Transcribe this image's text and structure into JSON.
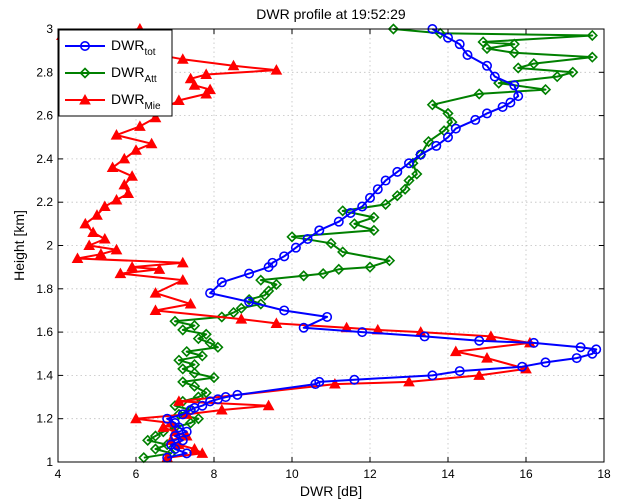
{
  "chart_data": {
    "type": "line",
    "title": "DWR profile at 19:52:29",
    "xlabel": "DWR [dB]",
    "ylabel": "Height [km]",
    "xlim": [
      4,
      18
    ],
    "ylim": [
      1,
      3
    ],
    "xticks": [
      4,
      6,
      8,
      10,
      12,
      14,
      16,
      18
    ],
    "yticks": [
      1,
      1.2,
      1.4,
      1.6,
      1.8,
      2,
      2.2,
      2.4,
      2.6,
      2.8,
      3
    ],
    "grid": true,
    "legend_position": "top-left",
    "series": [
      {
        "name": "DWR",
        "subscript": "tot",
        "color": "#0000ff",
        "marker": "circle",
        "x": [
          6.8,
          7.3,
          7.0,
          6.9,
          7.2,
          7.0,
          7.3,
          7.1,
          7.0,
          6.8,
          7.2,
          7.4,
          7.5,
          7.7,
          7.9,
          8.1,
          8.3,
          8.6,
          10.6,
          10.7,
          11.6,
          13.6,
          14.3,
          15.9,
          16.5,
          17.3,
          17.7,
          17.8,
          17.4,
          16.2,
          14.8,
          13.4,
          11.8,
          10.3,
          10.9,
          9.8,
          8.9,
          7.9,
          8.2,
          8.9,
          9.4,
          9.5,
          9.8,
          10.1,
          10.4,
          10.7,
          11.2,
          11.5,
          11.8,
          12.0,
          12.2,
          12.4,
          12.7,
          13.0,
          13.3,
          13.7,
          14.0,
          14.2,
          14.7,
          15.0,
          15.4,
          15.6,
          15.8,
          15.7,
          15.2,
          15.0,
          14.5,
          14.3,
          14.0,
          13.6
        ],
        "y": [
          1.02,
          1.04,
          1.06,
          1.08,
          1.1,
          1.12,
          1.14,
          1.16,
          1.18,
          1.2,
          1.22,
          1.24,
          1.25,
          1.26,
          1.28,
          1.29,
          1.3,
          1.31,
          1.36,
          1.37,
          1.38,
          1.4,
          1.42,
          1.44,
          1.46,
          1.48,
          1.5,
          1.52,
          1.53,
          1.55,
          1.56,
          1.58,
          1.6,
          1.62,
          1.67,
          1.7,
          1.74,
          1.78,
          1.83,
          1.87,
          1.9,
          1.92,
          1.95,
          1.99,
          2.03,
          2.07,
          2.11,
          2.15,
          2.18,
          2.22,
          2.26,
          2.3,
          2.34,
          2.38,
          2.42,
          2.46,
          2.5,
          2.54,
          2.58,
          2.61,
          2.64,
          2.66,
          2.69,
          2.74,
          2.78,
          2.83,
          2.88,
          2.93,
          2.96,
          3.0
        ]
      },
      {
        "name": "DWR",
        "subscript": "Att",
        "color": "#008000",
        "marker": "diamond",
        "x": [
          6.2,
          6.9,
          6.5,
          6.8,
          6.3,
          6.5,
          6.7,
          7.0,
          7.4,
          7.6,
          7.1,
          7.4,
          7.0,
          7.2,
          7.6,
          7.8,
          7.5,
          7.2,
          8.0,
          7.5,
          7.2,
          7.5,
          7.1,
          7.7,
          7.3,
          8.1,
          7.9,
          7.6,
          7.8,
          7.2,
          7.5,
          7.0,
          8.2,
          8.5,
          8.7,
          9.2,
          8.9,
          9.3,
          9.4,
          9.6,
          9.2,
          10.3,
          10.8,
          11.2,
          12.0,
          12.5,
          11.3,
          11.0,
          10.0,
          12.1,
          11.6,
          12.1,
          11.3,
          12.4,
          12.7,
          12.9,
          13.0,
          13.2,
          13.1,
          13.3,
          13.5,
          13.9,
          14.1,
          14.0,
          13.6,
          14.8,
          16.5,
          15.3,
          16.8,
          17.2,
          15.8,
          16.2,
          17.7,
          15.7,
          15.0,
          15.7,
          14.9,
          17.7,
          13.8,
          12.6
        ],
        "y": [
          1.02,
          1.04,
          1.06,
          1.08,
          1.1,
          1.12,
          1.14,
          1.16,
          1.18,
          1.2,
          1.22,
          1.24,
          1.26,
          1.28,
          1.3,
          1.32,
          1.35,
          1.37,
          1.39,
          1.41,
          1.43,
          1.45,
          1.47,
          1.49,
          1.51,
          1.53,
          1.55,
          1.57,
          1.59,
          1.61,
          1.63,
          1.65,
          1.67,
          1.69,
          1.71,
          1.73,
          1.75,
          1.77,
          1.79,
          1.82,
          1.84,
          1.86,
          1.87,
          1.89,
          1.9,
          1.93,
          1.97,
          2.01,
          2.04,
          2.07,
          2.1,
          2.13,
          2.16,
          2.19,
          2.23,
          2.26,
          2.3,
          2.33,
          2.38,
          2.42,
          2.48,
          2.53,
          2.57,
          2.61,
          2.65,
          2.7,
          2.72,
          2.75,
          2.78,
          2.8,
          2.82,
          2.84,
          2.87,
          2.89,
          2.91,
          2.93,
          2.94,
          2.97,
          2.98,
          3.0
        ]
      },
      {
        "name": "DWR",
        "subscript": "Mie",
        "color": "#ff0000",
        "marker": "triangle",
        "x": [
          6.8,
          7.7,
          7.5,
          7.1,
          6.9,
          7.3,
          7.0,
          6.7,
          6.9,
          6.0,
          7.3,
          8.2,
          9.4,
          7.1,
          11.1,
          13.0,
          14.8,
          16.0,
          15.0,
          14.2,
          16.1,
          15.1,
          13.3,
          12.2,
          11.4,
          9.6,
          8.7,
          6.5,
          7.4,
          6.5,
          7.2,
          5.6,
          6.6,
          5.9,
          7.2,
          4.5,
          5.1,
          5.5,
          4.8,
          5.2,
          4.9,
          4.7,
          5.0,
          5.2,
          5.5,
          5.8,
          5.7,
          5.9,
          5.4,
          5.7,
          6.0,
          6.4,
          5.5,
          6.1,
          6.5,
          6.7,
          7.1,
          7.8,
          7.9,
          7.5,
          7.4,
          7.8,
          9.6,
          8.5,
          7.2,
          6.3,
          4.1,
          6.1
        ],
        "y": [
          1.02,
          1.04,
          1.06,
          1.08,
          1.1,
          1.12,
          1.14,
          1.16,
          1.18,
          1.2,
          1.22,
          1.24,
          1.26,
          1.28,
          1.36,
          1.37,
          1.4,
          1.43,
          1.48,
          1.51,
          1.55,
          1.58,
          1.6,
          1.61,
          1.62,
          1.64,
          1.66,
          1.7,
          1.73,
          1.78,
          1.84,
          1.87,
          1.89,
          1.9,
          1.92,
          1.94,
          1.96,
          1.98,
          2.0,
          2.03,
          2.06,
          2.1,
          2.14,
          2.18,
          2.21,
          2.24,
          2.28,
          2.32,
          2.36,
          2.4,
          2.44,
          2.47,
          2.51,
          2.55,
          2.59,
          2.63,
          2.67,
          2.7,
          2.72,
          2.74,
          2.77,
          2.79,
          2.81,
          2.83,
          2.86,
          2.89,
          2.97,
          3.0
        ]
      }
    ]
  }
}
